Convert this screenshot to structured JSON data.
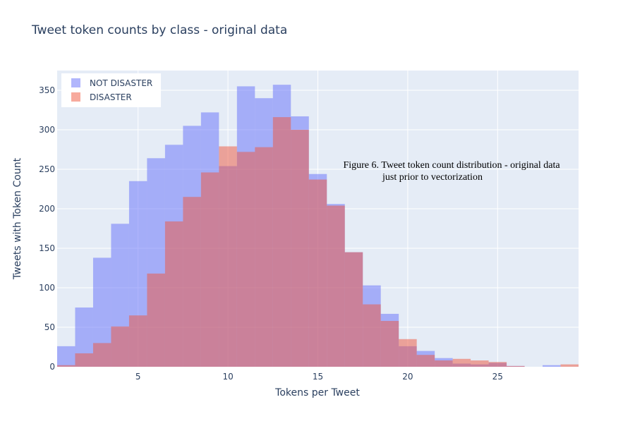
{
  "chart_data": {
    "type": "histogram",
    "title": "Tweet token counts by class - original data",
    "xlabel": "Tokens per Tweet",
    "ylabel": "Tweets with Token Count",
    "xlim": [
      0.5,
      29.5
    ],
    "ylim": [
      0,
      375
    ],
    "xticks": [
      5,
      10,
      15,
      20,
      25
    ],
    "yticks": [
      0,
      50,
      100,
      150,
      200,
      250,
      300,
      350
    ],
    "grid": true,
    "legend_position": "top-left",
    "bin_width": 1,
    "x": [
      1,
      2,
      3,
      4,
      5,
      6,
      7,
      8,
      9,
      10,
      11,
      12,
      13,
      14,
      15,
      16,
      17,
      18,
      19,
      20,
      21,
      22,
      23,
      24,
      25,
      26,
      27,
      28,
      29
    ],
    "series": [
      {
        "name": "NOT DISASTER",
        "color": "#636efa",
        "values": [
          26,
          75,
          138,
          181,
          235,
          264,
          281,
          305,
          322,
          254,
          355,
          340,
          357,
          317,
          244,
          206,
          145,
          103,
          67,
          26,
          20,
          11,
          4,
          3,
          5,
          1,
          0,
          2,
          0
        ]
      },
      {
        "name": "DISASTER",
        "color": "#ef553b",
        "values": [
          2,
          17,
          30,
          51,
          65,
          118,
          184,
          215,
          246,
          279,
          272,
          278,
          316,
          300,
          237,
          204,
          145,
          79,
          58,
          35,
          15,
          8,
          10,
          8,
          6,
          1,
          0,
          0,
          3
        ]
      }
    ],
    "annotation": {
      "line1": "Figure 6.  Tweet token count distribution - original data",
      "line2": "just prior to vectorization"
    }
  }
}
